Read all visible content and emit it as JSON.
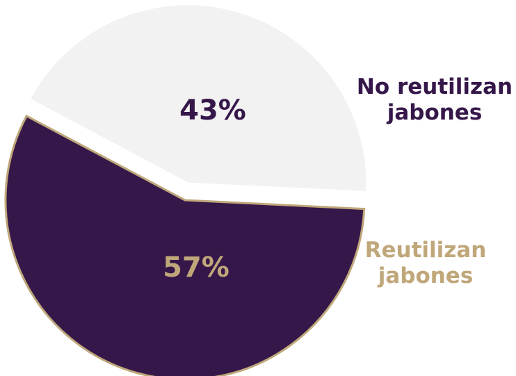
{
  "chart_data": {
    "type": "pie",
    "title": "",
    "slices": [
      {
        "name": "No reutilizan jabones",
        "label_lines": [
          "No reutilizan",
          "jabones"
        ],
        "value": 43,
        "value_label": "43%",
        "fill": "#f2f2f2",
        "stroke": "#ffffff",
        "text_color": "#35174a",
        "legend_color": "#35174a",
        "exploded": true
      },
      {
        "name": "Reutilizan jabones",
        "label_lines": [
          "Reutilizan",
          "jabones"
        ],
        "value": 57,
        "value_label": "57%",
        "fill": "#35174a",
        "stroke": "#bfa77a",
        "text_color": "#bfa77a",
        "legend_color": "#bfa77a",
        "exploded": true
      }
    ],
    "legend_position": "right"
  }
}
